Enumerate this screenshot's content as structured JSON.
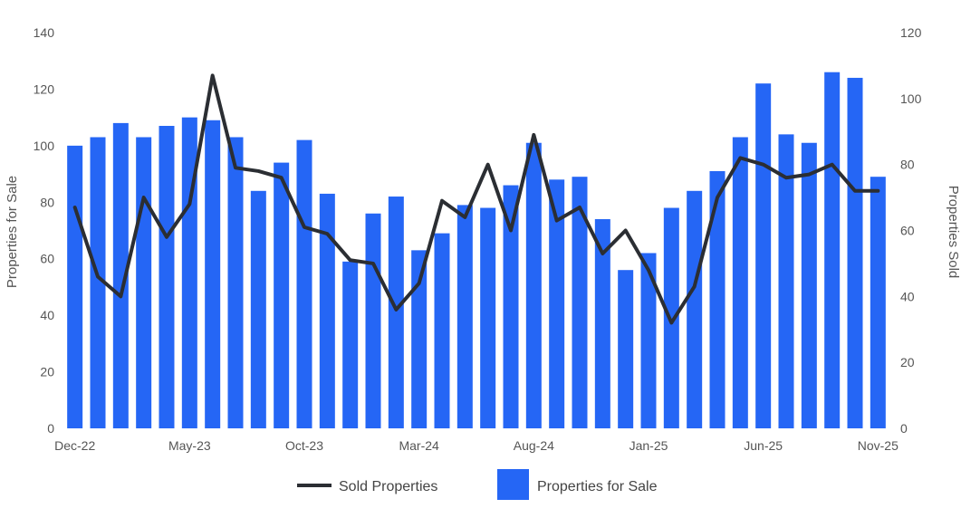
{
  "colors": {
    "bars": "#2566f5",
    "line": "#2b2e33",
    "axis_text": "#555555"
  },
  "chart_data": {
    "type": "bar",
    "x": [
      "Dec-22",
      "Jan-23",
      "Feb-23",
      "Mar-23",
      "Apr-23",
      "May-23",
      "Jun-23",
      "Jul-23",
      "Aug-23",
      "Sep-23",
      "Oct-23",
      "Nov-23",
      "Dec-23",
      "Jan-24",
      "Feb-24",
      "Mar-24",
      "Apr-24",
      "May-24",
      "Jun-24",
      "Jul-24",
      "Aug-24",
      "Sep-24",
      "Oct-24",
      "Nov-24",
      "Dec-24",
      "Jan-25",
      "Feb-25",
      "Mar-25",
      "Apr-25",
      "May-25",
      "Jun-25",
      "Jul-25",
      "Aug-25",
      "Sep-25",
      "Oct-25",
      "Nov-25"
    ],
    "x_tick_labels": [
      "Dec-22",
      "May-23",
      "Oct-23",
      "Mar-24",
      "Aug-24",
      "Jan-25",
      "Jun-25",
      "Nov-25"
    ],
    "series": [
      {
        "name": "Properties for Sale",
        "type": "bar",
        "axis": "left",
        "values": [
          100,
          103,
          108,
          103,
          107,
          110,
          109,
          103,
          84,
          94,
          102,
          83,
          59,
          76,
          82,
          63,
          69,
          79,
          78,
          86,
          101,
          88,
          89,
          74,
          56,
          62,
          78,
          84,
          91,
          103,
          122,
          104,
          101,
          126,
          124,
          89
        ]
      },
      {
        "name": "Sold Properties",
        "type": "line",
        "axis": "right",
        "values": [
          67,
          46,
          40,
          70,
          58,
          68,
          107,
          79,
          78,
          76,
          61,
          59,
          51,
          50,
          36,
          44,
          69,
          64,
          80,
          60,
          89,
          63,
          67,
          53,
          60,
          48,
          32,
          43,
          70,
          82,
          80,
          76,
          77,
          80,
          72,
          72
        ]
      }
    ],
    "y_left": {
      "label": "Properties for Sale",
      "min": 0,
      "max": 140,
      "ticks": [
        0,
        20,
        40,
        60,
        80,
        100,
        120,
        140
      ]
    },
    "y_right": {
      "label": "Properties Sold",
      "min": 0,
      "max": 120,
      "ticks": [
        0,
        20,
        40,
        60,
        80,
        100,
        120
      ]
    },
    "legend": {
      "placement": "bottom",
      "items": [
        {
          "label": "Sold Properties",
          "kind": "line"
        },
        {
          "label": "Properties for Sale",
          "kind": "bar"
        }
      ]
    },
    "grid": false
  }
}
